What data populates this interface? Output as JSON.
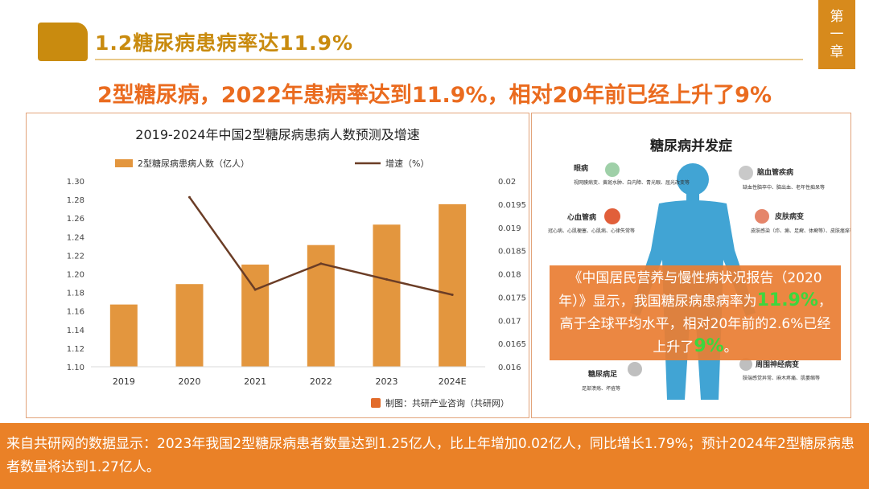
{
  "header": {
    "section_title": "1.2糖尿病患病率达11.9%",
    "chapter_tab": [
      "第",
      "一",
      "章"
    ],
    "accent_color": "#c98b0f"
  },
  "headline": "2型糖尿病，2022年患病率达到11.9%，相对20年前已经上升了9%",
  "chart": {
    "source": "制图：共研产业咨询（共研网）"
  },
  "chart_data": {
    "type": "bar",
    "title": "2019-2024年中国2型糖尿病患病人数预测及增速",
    "categories": [
      "2019",
      "2020",
      "2021",
      "2022",
      "2023",
      "2024E"
    ],
    "series": [
      {
        "name": "2型糖尿病患病人数（亿人）",
        "kind": "bar",
        "axis": "left",
        "color": "#e3963e",
        "values": [
          1.167,
          1.189,
          1.21,
          1.231,
          1.253,
          1.275
        ]
      },
      {
        "name": "增速（%）",
        "kind": "line",
        "axis": "right",
        "color": "#6b3d26",
        "values": [
          null,
          0.01965,
          0.01766,
          0.01822,
          0.01788,
          0.01755
        ]
      }
    ],
    "y_left": {
      "min": 1.1,
      "max": 1.3,
      "ticks": [
        "1.10",
        "1.12",
        "1.14",
        "1.16",
        "1.18",
        "1.20",
        "1.22",
        "1.24",
        "1.26",
        "1.28",
        "1.30"
      ]
    },
    "y_right": {
      "min": 0.016,
      "max": 0.02,
      "ticks": [
        "0.016",
        "0.0165",
        "0.017",
        "0.0175",
        "0.018",
        "0.0185",
        "0.019",
        "0.0195",
        "0.02"
      ]
    },
    "legend": "top"
  },
  "complications": {
    "title": "糖尿病并发症",
    "items": [
      {
        "name": "眼病",
        "desc": "视网膜病变、黄斑水肿、白内障、青光眼、屈光改变等",
        "side": "left"
      },
      {
        "name": "脑血管疾病",
        "desc": "缺血性脑卒中、脑出血、老年性痴呆等",
        "side": "right"
      },
      {
        "name": "心血管病",
        "desc": "冠心病、心肌梗塞、心肌病、心律失常等",
        "side": "left"
      },
      {
        "name": "皮肤病变",
        "desc": "皮肤感染（疖、痈、足癣、体癣等）、皮肤瘙痒等",
        "side": "right"
      },
      {
        "name": "糖尿病足",
        "desc": "足部溃疡、坏疽等",
        "side": "left"
      },
      {
        "name": "周围神经病变",
        "desc": "肢端感觉异常、麻木疼痛、肌萎缩等",
        "side": "right"
      }
    ],
    "overlay_parts": [
      "《中国居民营养与慢性病状况报告（2020年）》显示，我国糖尿病患病率为",
      "11.9%",
      "，高于全球平均水平，相对20年前的2.6%已经上升了",
      "9%",
      "。"
    ]
  },
  "footer": {
    "text": "来自共研网的数据显示：2023年我国2型糖尿病患者数量达到1.25亿人，比上年增加0.02亿人，同比增长1.79%；预计2024年2型糖尿病患者数量将达到1.27亿人。"
  }
}
